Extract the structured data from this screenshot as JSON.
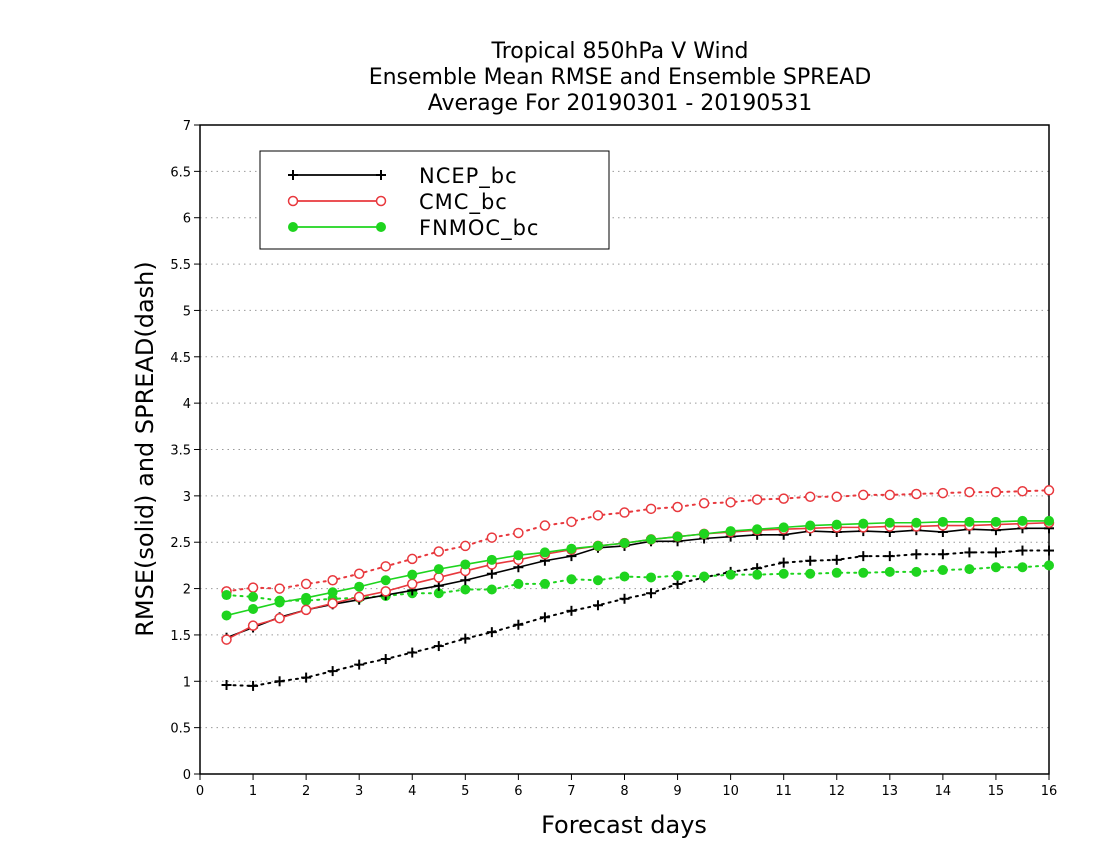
{
  "chart_data": {
    "type": "line",
    "title": [
      "Tropical 850hPa V Wind",
      "Ensemble Mean RMSE and Ensemble SPREAD",
      "Average For 20190301 - 20190531"
    ],
    "xlabel": "Forecast days",
    "ylabel": "RMSE(solid) and SPREAD(dash)",
    "xlim": [
      0,
      16
    ],
    "ylim": [
      0,
      7
    ],
    "xticks": [
      "0",
      "1",
      "2",
      "3",
      "4",
      "5",
      "6",
      "7",
      "8",
      "9",
      "10",
      "11",
      "12",
      "13",
      "14",
      "15",
      "16"
    ],
    "yticks": [
      "0",
      "0.5",
      "1",
      "1.5",
      "2",
      "2.5",
      "3",
      "3.5",
      "4",
      "4.5",
      "5",
      "5.5",
      "6",
      "6.5",
      "7"
    ],
    "grid": "horizontal dotted",
    "legend_position": "top-left",
    "x": [
      0.5,
      1,
      1.5,
      2,
      2.5,
      3,
      3.5,
      4,
      4.5,
      5,
      5.5,
      6,
      6.5,
      7,
      7.5,
      8,
      8.5,
      9,
      9.5,
      10,
      10.5,
      11,
      11.5,
      12,
      12.5,
      13,
      13.5,
      14,
      14.5,
      15,
      15.5,
      16
    ],
    "series": [
      {
        "name": "NCEP_bc",
        "color": "#000000",
        "marker": "plus",
        "rmse": [
          1.47,
          1.58,
          1.69,
          1.77,
          1.83,
          1.88,
          1.93,
          1.98,
          2.03,
          2.09,
          2.16,
          2.23,
          2.3,
          2.35,
          2.44,
          2.46,
          2.51,
          2.51,
          2.54,
          2.56,
          2.58,
          2.58,
          2.62,
          2.61,
          2.62,
          2.61,
          2.63,
          2.61,
          2.64,
          2.63,
          2.65,
          2.65
        ],
        "spread": [
          0.96,
          0.95,
          1.0,
          1.04,
          1.11,
          1.18,
          1.24,
          1.31,
          1.38,
          1.46,
          1.53,
          1.61,
          1.69,
          1.76,
          1.82,
          1.89,
          1.95,
          2.05,
          2.12,
          2.18,
          2.22,
          2.28,
          2.3,
          2.31,
          2.35,
          2.35,
          2.37,
          2.37,
          2.39,
          2.39,
          2.41,
          2.41
        ]
      },
      {
        "name": "CMC_bc",
        "color": "#e8383d",
        "marker": "open-circle",
        "rmse": [
          1.45,
          1.6,
          1.68,
          1.77,
          1.84,
          1.91,
          1.97,
          2.05,
          2.12,
          2.19,
          2.26,
          2.31,
          2.37,
          2.42,
          2.46,
          2.49,
          2.53,
          2.56,
          2.59,
          2.61,
          2.63,
          2.64,
          2.65,
          2.66,
          2.66,
          2.67,
          2.67,
          2.68,
          2.68,
          2.69,
          2.7,
          2.71
        ],
        "spread": [
          1.97,
          2.01,
          2.0,
          2.05,
          2.09,
          2.16,
          2.24,
          2.32,
          2.4,
          2.46,
          2.55,
          2.6,
          2.68,
          2.72,
          2.79,
          2.82,
          2.86,
          2.88,
          2.92,
          2.93,
          2.96,
          2.97,
          2.99,
          2.99,
          3.01,
          3.01,
          3.02,
          3.03,
          3.04,
          3.04,
          3.05,
          3.06
        ]
      },
      {
        "name": "FNMOC_bc",
        "color": "#1ed41e",
        "marker": "filled-circle",
        "rmse": [
          1.71,
          1.78,
          1.85,
          1.9,
          1.96,
          2.02,
          2.09,
          2.15,
          2.21,
          2.26,
          2.31,
          2.36,
          2.39,
          2.43,
          2.46,
          2.49,
          2.53,
          2.56,
          2.59,
          2.62,
          2.64,
          2.66,
          2.68,
          2.69,
          2.7,
          2.71,
          2.71,
          2.72,
          2.72,
          2.72,
          2.73,
          2.73
        ],
        "spread": [
          1.93,
          1.91,
          1.87,
          1.87,
          1.89,
          1.9,
          1.92,
          1.95,
          1.95,
          1.99,
          1.99,
          2.05,
          2.05,
          2.1,
          2.09,
          2.13,
          2.12,
          2.14,
          2.13,
          2.15,
          2.15,
          2.16,
          2.16,
          2.17,
          2.17,
          2.18,
          2.18,
          2.2,
          2.21,
          2.23,
          2.23,
          2.25
        ]
      }
    ]
  }
}
